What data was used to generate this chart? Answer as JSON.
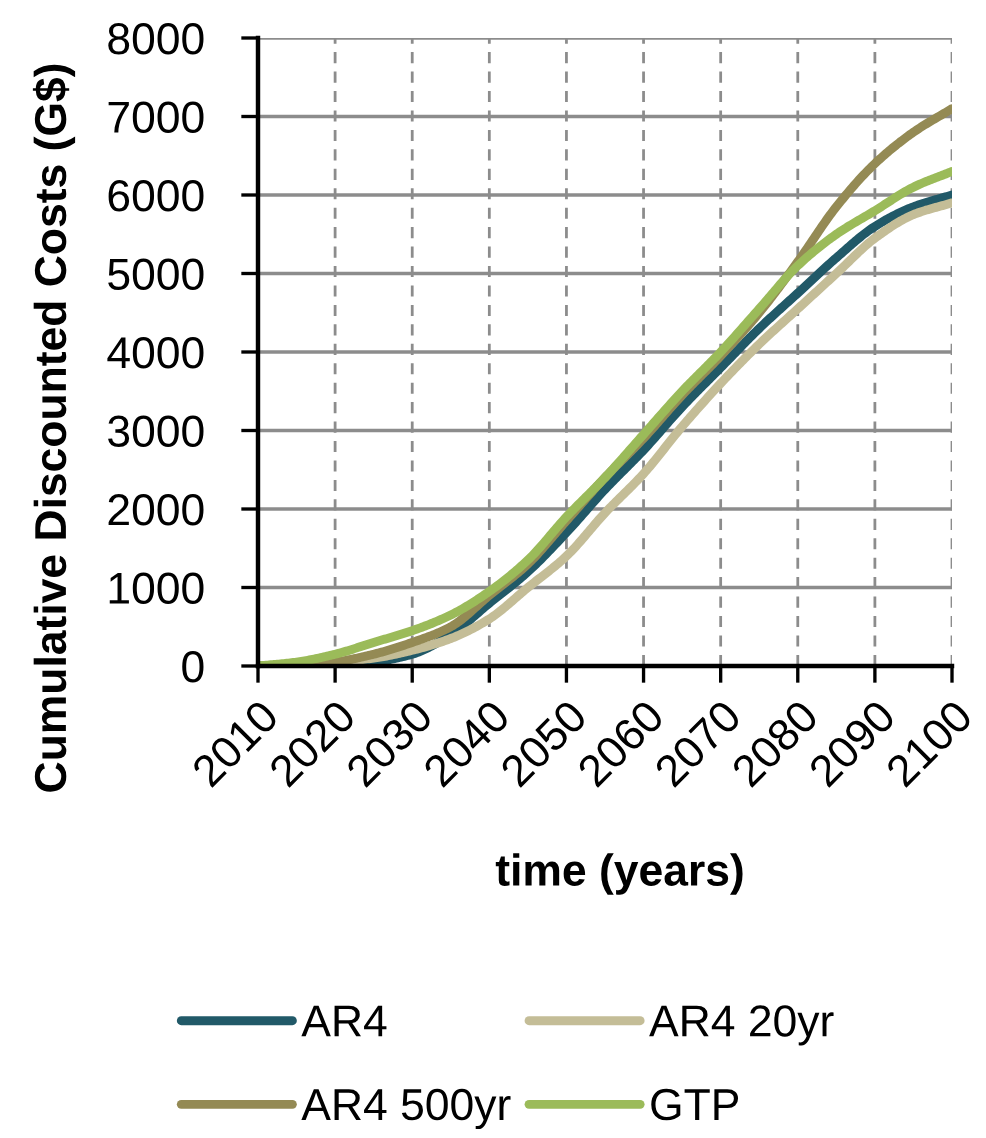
{
  "chart_data": {
    "type": "line",
    "xlabel": "time (years)",
    "ylabel": "Cumulative Discounted Costs (G$)",
    "x": [
      2010,
      2015,
      2020,
      2025,
      2030,
      2035,
      2040,
      2045,
      2050,
      2055,
      2060,
      2065,
      2070,
      2075,
      2080,
      2085,
      2090,
      2095,
      2100
    ],
    "series": [
      {
        "name": "AR4",
        "color": "#215968",
        "values": [
          0,
          0,
          0,
          50,
          150,
          400,
          800,
          1200,
          1700,
          2250,
          2750,
          3300,
          3800,
          4300,
          4750,
          5200,
          5600,
          5850,
          6000
        ]
      },
      {
        "name": "AR4 20yr",
        "color": "#c4bd97",
        "values": [
          0,
          0,
          50,
          100,
          200,
          350,
          600,
          1000,
          1400,
          1950,
          2450,
          3050,
          3600,
          4100,
          4550,
          5000,
          5450,
          5750,
          5900
        ]
      },
      {
        "name": "AR4 500yr",
        "color": "#948a54",
        "values": [
          0,
          0,
          50,
          150,
          300,
          500,
          900,
          1300,
          1850,
          2400,
          2900,
          3450,
          3950,
          4500,
          5150,
          5850,
          6400,
          6800,
          7100
        ]
      },
      {
        "name": "GTP",
        "color": "#9bbb59",
        "values": [
          0,
          50,
          150,
          300,
          450,
          650,
          950,
          1350,
          1900,
          2400,
          2950,
          3500,
          4000,
          4550,
          5100,
          5500,
          5800,
          6100,
          6300
        ]
      }
    ],
    "xlim": [
      2010,
      2100
    ],
    "xticks": [
      2010,
      2020,
      2030,
      2040,
      2050,
      2060,
      2070,
      2080,
      2090,
      2100
    ],
    "ylim": [
      0,
      8000
    ],
    "yticks": [
      0,
      1000,
      2000,
      3000,
      4000,
      5000,
      6000,
      7000,
      8000
    ],
    "grid": true,
    "legend": "bottom",
    "marker": "none",
    "line_style": "solid"
  }
}
